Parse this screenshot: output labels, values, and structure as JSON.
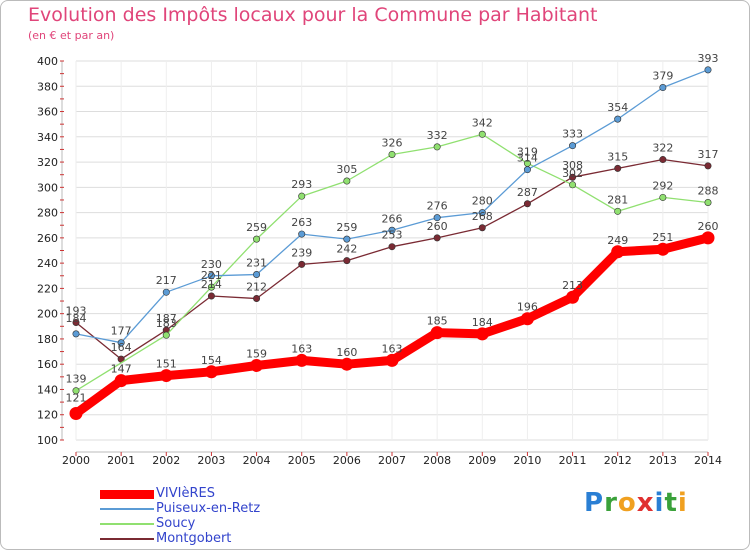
{
  "chart_data": {
    "type": "line",
    "title": "Evolution des Impôts locaux pour la Commune par Habitant",
    "subtitle": "(en € et par an)",
    "x": [
      "2000",
      "2001",
      "2002",
      "2003",
      "2004",
      "2005",
      "2006",
      "2007",
      "2008",
      "2009",
      "2010",
      "2011",
      "2012",
      "2013",
      "2014"
    ],
    "ylim": [
      100,
      400
    ],
    "yticks": [
      100,
      120,
      140,
      160,
      180,
      200,
      220,
      240,
      260,
      280,
      300,
      320,
      340,
      360,
      380,
      400
    ],
    "grid": true,
    "legend_position": "bottom-left",
    "series": [
      {
        "name": "VIVIèRES",
        "color": "#ff0000",
        "values": [
          121,
          147,
          151,
          154,
          159,
          163,
          160,
          163,
          185,
          184,
          196,
          213,
          249,
          251,
          260
        ]
      },
      {
        "name": "Puiseux-en-Retz",
        "color": "#5b9bd5",
        "values": [
          184,
          177,
          217,
          230,
          231,
          263,
          259,
          266,
          276,
          280,
          314,
          333,
          354,
          379,
          393
        ]
      },
      {
        "name": "Soucy",
        "color": "#90e070",
        "values": [
          139,
          null,
          183,
          221,
          259,
          293,
          305,
          326,
          332,
          342,
          319,
          302,
          281,
          292,
          288
        ]
      },
      {
        "name": "Montgobert",
        "color": "#7a2a33",
        "values": [
          193,
          164,
          187,
          214,
          212,
          239,
          242,
          253,
          260,
          268,
          287,
          308,
          315,
          322,
          317
        ]
      }
    ]
  },
  "logo": {
    "text": "Proxiti",
    "letters": [
      "P",
      "r",
      "o",
      "x",
      "i",
      "t",
      "i"
    ],
    "colors": [
      "#2a7fd4",
      "#3aa13a",
      "#f0a020",
      "#e03030",
      "#2a7fd4",
      "#3aa13a",
      "#f0a020"
    ]
  }
}
